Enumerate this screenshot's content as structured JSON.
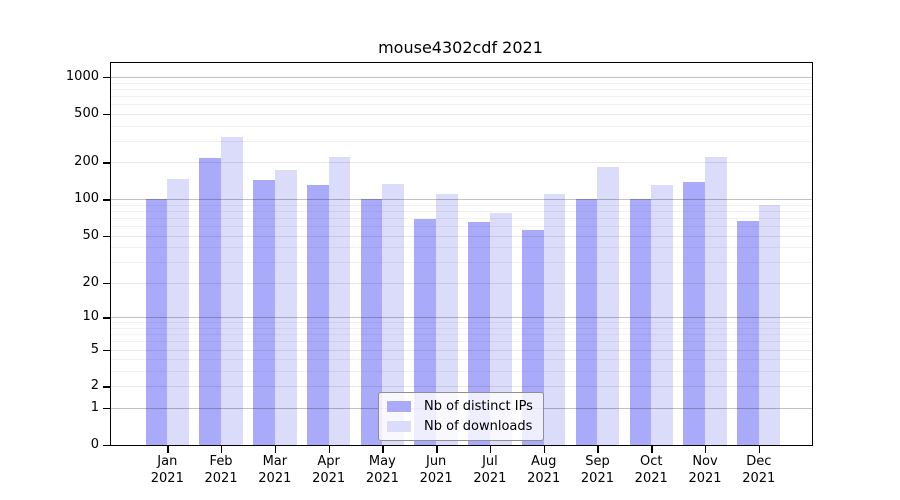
{
  "chart_data": {
    "type": "bar",
    "title": "mouse4302cdf 2021",
    "categories": [
      "Jan",
      "Feb",
      "Mar",
      "Apr",
      "May",
      "Jun",
      "Jul",
      "Aug",
      "Sep",
      "Oct",
      "Nov",
      "Dec"
    ],
    "category_year": "2021",
    "series": [
      {
        "name": "Nb of distinct IPs",
        "color": "#aaaafa",
        "values": [
          100,
          217,
          144,
          131,
          100,
          69,
          65,
          56,
          100,
          101,
          138,
          66
        ]
      },
      {
        "name": "Nb of downloads",
        "color": "#dbdbfa",
        "values": [
          147,
          323,
          173,
          220,
          133,
          110,
          77,
          111,
          185,
          130,
          221,
          90
        ]
      }
    ],
    "y_scale": "log10(value+1)",
    "ylim": [
      0,
      1300
    ],
    "y_ticks": [
      0,
      1,
      2,
      5,
      10,
      20,
      50,
      100,
      200,
      500,
      1000
    ],
    "y_minor_ticks": [
      3,
      4,
      6,
      7,
      8,
      9,
      30,
      40,
      60,
      70,
      80,
      90,
      300,
      400,
      600,
      700,
      800,
      900
    ],
    "grid": true,
    "legend_position": "inside-bottom-center",
    "colors": {
      "grid_decade": "rgba(0,0,0,0.24)",
      "grid_major": "rgba(0,0,0,0.09)",
      "grid_minor": "rgba(0,0,0,0.05)",
      "axis": "#000000"
    }
  }
}
